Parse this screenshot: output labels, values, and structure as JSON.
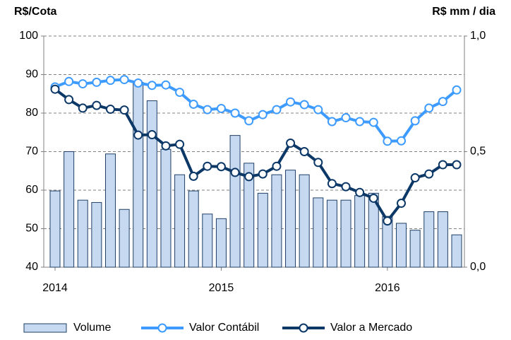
{
  "chart_data": {
    "type": "bar-line",
    "y_label": "R$/Cota",
    "y2_label": "R$ mm / dia",
    "categories": [
      "2014",
      null,
      null,
      null,
      null,
      null,
      null,
      null,
      null,
      null,
      null,
      null,
      "2015",
      null,
      null,
      null,
      null,
      null,
      null,
      null,
      null,
      null,
      null,
      null,
      "2016",
      null,
      null,
      null,
      null,
      null
    ],
    "series": [
      {
        "name": "Volume",
        "type": "bar",
        "axis": "y2",
        "color": "#c6d9f1",
        "edge": "#1f3f66",
        "values": [
          0.33,
          0.5,
          0.29,
          0.28,
          0.49,
          0.25,
          0.8,
          0.72,
          0.51,
          0.4,
          0.33,
          0.23,
          0.21,
          0.57,
          0.45,
          0.32,
          0.4,
          0.42,
          0.4,
          0.3,
          0.29,
          0.29,
          0.31,
          0.32,
          0.22,
          0.19,
          0.16,
          0.24,
          0.24,
          0.14
        ]
      },
      {
        "name": "Valor Contábil",
        "type": "line",
        "color": "#3d9bff",
        "values": [
          86.8,
          88.2,
          87.6,
          88,
          88.5,
          88.7,
          87.8,
          87.2,
          87.3,
          85.4,
          82.3,
          80.9,
          81.2,
          80,
          78,
          79.6,
          80.9,
          82.9,
          82.2,
          80.9,
          77.8,
          78.8,
          77.8,
          77.6,
          72.7,
          72.8,
          78,
          81.3,
          83,
          86
        ]
      },
      {
        "name": "Valor a Mercado",
        "type": "line",
        "color": "#0c3868",
        "values": [
          86.2,
          83.5,
          81.3,
          82,
          81,
          80.8,
          74.3,
          74.4,
          71.5,
          71.9,
          63.6,
          66.2,
          66.1,
          64.6,
          63.5,
          64.2,
          66.2,
          72.2,
          70,
          67.2,
          61.7,
          60.9,
          59.4,
          57.9,
          52,
          56.6,
          63.2,
          64.2,
          66.6,
          66.6
        ]
      }
    ],
    "ylim": [
      40,
      100
    ],
    "yticks": [
      40,
      50,
      60,
      70,
      80,
      90,
      100
    ],
    "y2lim": [
      0,
      1
    ],
    "y2ticks": [
      {
        "value": 0,
        "label": "0,0"
      },
      {
        "value": 0.5,
        "label": "0,5"
      },
      {
        "value": 1,
        "label": "1,0"
      }
    ],
    "grid": true,
    "legend": "bottom"
  }
}
